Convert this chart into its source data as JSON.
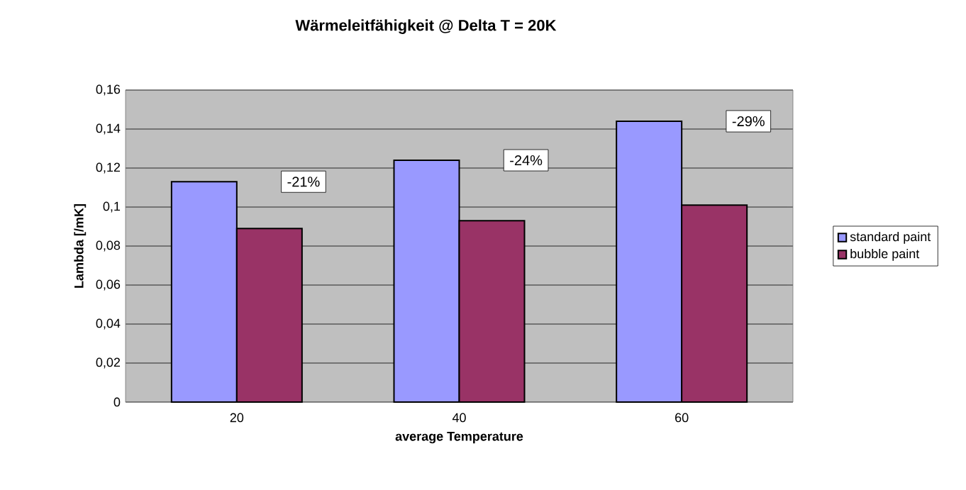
{
  "chart_data": {
    "type": "bar",
    "title": "Wärmeleitfähigkeit @ Delta T = 20K",
    "xlabel": "average Temperature",
    "ylabel": "Lambda [/mK]",
    "categories": [
      "20",
      "40",
      "60"
    ],
    "series": [
      {
        "name": "standard paint",
        "color": "#9999ff",
        "values": [
          0.113,
          0.124,
          0.144
        ]
      },
      {
        "name": "bubble paint",
        "color": "#993366",
        "values": [
          0.089,
          0.093,
          0.101
        ]
      }
    ],
    "ylim": [
      0,
      0.16
    ],
    "yticks": [
      {
        "value": 0,
        "label": "0"
      },
      {
        "value": 0.02,
        "label": "0,02"
      },
      {
        "value": 0.04,
        "label": "0,04"
      },
      {
        "value": 0.06,
        "label": "0,06"
      },
      {
        "value": 0.08,
        "label": "0,08"
      },
      {
        "value": 0.1,
        "label": "0,1"
      },
      {
        "value": 0.12,
        "label": "0,12"
      },
      {
        "value": 0.14,
        "label": "0,14"
      },
      {
        "value": 0.16,
        "label": "0,16"
      }
    ],
    "grid": "y",
    "legend": "right",
    "annotations": [
      "-21%",
      "-24%",
      "-29%"
    ]
  }
}
